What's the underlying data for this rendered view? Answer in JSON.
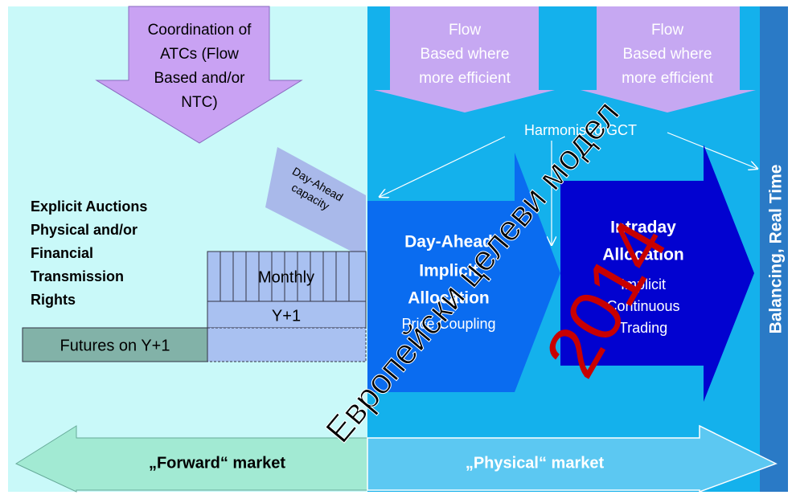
{
  "coordination": {
    "lines": [
      "Coordination of",
      "ATCs (Flow",
      "Based and/or",
      "NTC)"
    ]
  },
  "flow_based_day_ahead": {
    "lines": [
      "Flow",
      "Based where",
      "more efficient"
    ]
  },
  "flow_based_intraday": {
    "lines": [
      "Flow",
      "Based where",
      "more efficient"
    ]
  },
  "harmonised_gct": "Harmonised GCT",
  "day_ahead_capacity": {
    "lines": [
      "Day-Ahead",
      "capacity"
    ]
  },
  "explicit_auctions": {
    "lines": [
      "Explicit Auctions",
      "Physical and/or",
      "Financial",
      "Transmission",
      "Rights"
    ]
  },
  "monthly": "Monthly",
  "year_ahead": "Y+1",
  "futures": "Futures on Y+1",
  "day_ahead": {
    "title_lines": [
      "Day-Ahead",
      "Implicit",
      "Allocation"
    ],
    "subtitle": "Price Coupling"
  },
  "intraday": {
    "title_lines": [
      "Intraday",
      "Allocation"
    ],
    "subtitle_lines": [
      "Implicit",
      "Continuous",
      "Trading"
    ]
  },
  "balancing": "Balancing, Real Time",
  "forward_market": "„Forward“ market",
  "physical_market": "„Physical“ market",
  "watermark": {
    "text": "Европейски целеви модел",
    "year": "2014"
  }
}
